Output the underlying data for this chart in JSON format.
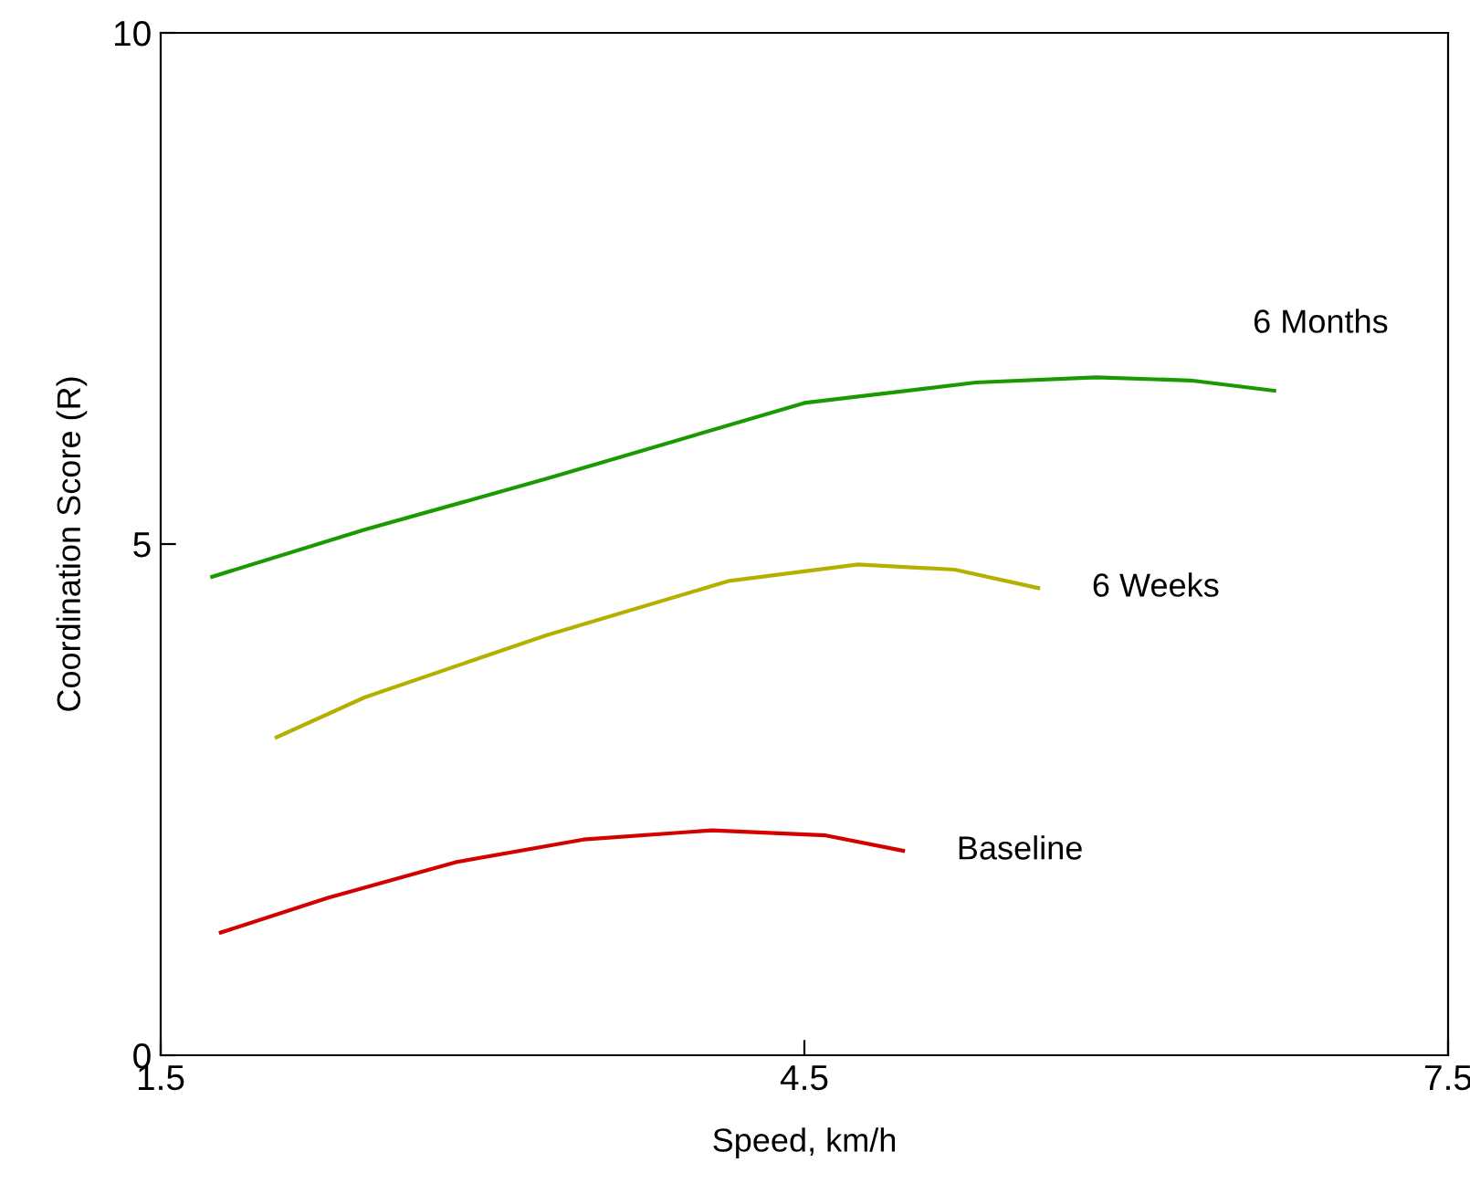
{
  "chart_data": {
    "type": "line",
    "xlabel": "Speed, km/h",
    "ylabel": "Coordination Score (R)",
    "xlim": [
      1.5,
      7.5
    ],
    "xticks": [
      1.5,
      4.5,
      7.5
    ],
    "ylim": [
      0,
      10
    ],
    "yticks": [
      0,
      5,
      10
    ],
    "grid": false,
    "legend": false,
    "series": [
      {
        "name": "Baseline",
        "color": "#d40000",
        "x": [
          1.78,
          2.28,
          2.88,
          3.47,
          4.07,
          4.6,
          4.96
        ],
        "values": [
          1.2,
          1.54,
          1.89,
          2.11,
          2.2,
          2.15,
          2.0
        ]
      },
      {
        "name": "6 Weeks",
        "color": "#b5b000",
        "x": [
          2.04,
          2.45,
          3.3,
          4.15,
          4.75,
          5.2,
          5.59
        ],
        "values": [
          3.11,
          3.5,
          4.11,
          4.64,
          4.8,
          4.75,
          4.57
        ]
      },
      {
        "name": "6 Months",
        "color": "#1a9a00",
        "x": [
          1.74,
          2.45,
          3.3,
          4.5,
          5.3,
          5.86,
          6.3,
          6.69
        ],
        "values": [
          4.68,
          5.14,
          5.64,
          6.38,
          6.58,
          6.63,
          6.6,
          6.5
        ]
      }
    ]
  }
}
